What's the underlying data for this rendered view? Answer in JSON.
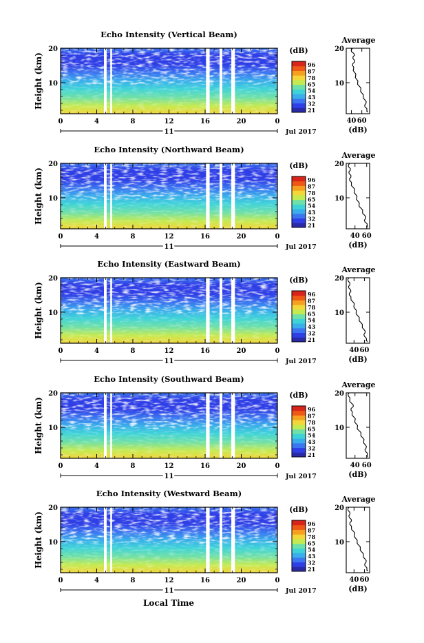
{
  "figure": {
    "xlabel": "Local Time",
    "date_label": "Jul 2017",
    "day_label": "11",
    "ylabel": "Height (km)",
    "cbar_label": "(dB)",
    "avg_title": "Average",
    "avg_xlabel": "(dB)"
  },
  "colormap": [
    "#2a2aa8",
    "#2f3fe6",
    "#3b76f0",
    "#39aeea",
    "#3fd3d8",
    "#6fe0a8",
    "#c4ea52",
    "#f2d63a",
    "#f5a020",
    "#ee5a16",
    "#d8241a"
  ],
  "colorbar_ticks": [
    "96",
    "87",
    "78",
    "65",
    "54",
    "43",
    "32",
    "21"
  ],
  "chart_data": [
    {
      "type": "heatmap",
      "title": "Echo Intensity (Vertical Beam)",
      "x_ticks": [
        "0",
        "4",
        "8",
        "12",
        "16",
        "20",
        "0"
      ],
      "y_ticks": [
        "20",
        "10"
      ],
      "xlim": [
        0,
        24
      ],
      "ylim": [
        1,
        20
      ],
      "gaps_hours": [
        [
          4.8,
          5.1
        ],
        [
          5.5,
          5.7
        ],
        [
          16.1,
          16.5
        ],
        [
          17.6,
          17.9
        ],
        [
          18.9,
          19.3
        ]
      ],
      "average_profile": {
        "xlim": [
          30,
          75
        ],
        "x_ticks": [
          "40",
          "60"
        ],
        "y_ticks": [
          "20",
          "10"
        ],
        "height_km": [
          20,
          19,
          18,
          17,
          16,
          15,
          14,
          13,
          12,
          11,
          10,
          9,
          8,
          7,
          6,
          5,
          4,
          3,
          2,
          1.5
        ],
        "db": [
          42,
          40,
          46,
          43,
          46,
          42,
          44,
          46,
          48,
          50,
          52,
          55,
          58,
          60,
          63,
          66,
          68,
          66,
          70,
          72
        ]
      }
    },
    {
      "type": "heatmap",
      "title": "Echo Intensity (Northward Beam)",
      "x_ticks": [
        "0",
        "4",
        "8",
        "12",
        "16",
        "20",
        "0"
      ],
      "y_ticks": [
        "20",
        "10"
      ],
      "xlim": [
        0,
        24
      ],
      "ylim": [
        1,
        20
      ],
      "gaps_hours": [
        [
          4.8,
          5.1
        ],
        [
          5.5,
          5.7
        ],
        [
          16.1,
          16.5
        ],
        [
          17.6,
          17.9
        ],
        [
          18.9,
          19.3
        ]
      ],
      "average_profile": {
        "xlim": [
          25,
          65
        ],
        "x_ticks": [
          "40",
          "60"
        ],
        "y_ticks": [
          "20",
          "10"
        ],
        "height_km": [
          20,
          19,
          18,
          17,
          16,
          15,
          14,
          13,
          12,
          11,
          10,
          9,
          8,
          7,
          6,
          5,
          4,
          3,
          2,
          1.5
        ],
        "db": [
          31,
          29,
          32,
          30,
          33,
          31,
          34,
          37,
          39,
          41,
          43,
          45,
          47,
          50,
          53,
          56,
          58,
          57,
          61,
          62
        ]
      }
    },
    {
      "type": "heatmap",
      "title": "Echo Intensity (Eastward Beam)",
      "x_ticks": [
        "0",
        "4",
        "8",
        "12",
        "16",
        "20",
        "0"
      ],
      "y_ticks": [
        "20",
        "10"
      ],
      "xlim": [
        0,
        24
      ],
      "ylim": [
        1,
        20
      ],
      "gaps_hours": [
        [
          4.8,
          5.1
        ],
        [
          5.5,
          5.7
        ],
        [
          16.1,
          16.5
        ],
        [
          17.6,
          17.9
        ],
        [
          18.9,
          19.3
        ]
      ],
      "average_profile": {
        "xlim": [
          25,
          70
        ],
        "x_ticks": [
          "40",
          "60"
        ],
        "y_ticks": [
          "20",
          "10"
        ],
        "height_km": [
          20,
          19,
          18,
          17,
          16,
          15,
          14,
          13,
          12,
          11,
          10,
          9,
          8,
          7,
          6,
          5,
          4,
          3,
          2,
          1.5
        ],
        "db": [
          30,
          29,
          32,
          30,
          34,
          31,
          34,
          38,
          40,
          42,
          44,
          47,
          50,
          53,
          56,
          59,
          61,
          60,
          64,
          66
        ]
      }
    },
    {
      "type": "heatmap",
      "title": "Echo Intensity (Southward Beam)",
      "x_ticks": [
        "0",
        "4",
        "8",
        "12",
        "16",
        "20",
        "0"
      ],
      "y_ticks": [
        "20",
        "10"
      ],
      "xlim": [
        0,
        24
      ],
      "ylim": [
        1,
        20
      ],
      "gaps_hours": [
        [
          4.8,
          5.1
        ],
        [
          5.5,
          5.7
        ],
        [
          16.1,
          16.5
        ],
        [
          17.6,
          17.9
        ],
        [
          18.9,
          19.3
        ]
      ],
      "average_profile": {
        "xlim": [
          25,
          65
        ],
        "x_ticks": [
          "40",
          "60"
        ],
        "y_ticks": [
          "20",
          "10"
        ],
        "height_km": [
          20,
          19,
          18,
          17,
          16,
          15,
          14,
          13,
          12,
          11,
          10,
          9,
          8,
          7,
          6,
          5,
          4,
          3,
          2,
          1.5
        ],
        "db": [
          30,
          29,
          31,
          34,
          37,
          33,
          35,
          38,
          40,
          42,
          44,
          47,
          50,
          53,
          55,
          57,
          59,
          58,
          61,
          62
        ]
      }
    },
    {
      "type": "heatmap",
      "title": "Echo Intensity (Westward Beam)",
      "x_ticks": [
        "0",
        "4",
        "8",
        "12",
        "16",
        "20",
        "0"
      ],
      "y_ticks": [
        "20",
        "10"
      ],
      "xlim": [
        0,
        24
      ],
      "ylim": [
        1,
        20
      ],
      "gaps_hours": [
        [
          4.8,
          5.1
        ],
        [
          5.5,
          5.7
        ],
        [
          16.1,
          16.5
        ],
        [
          17.6,
          17.9
        ],
        [
          18.9,
          19.3
        ]
      ],
      "average_profile": {
        "xlim": [
          25,
          70
        ],
        "x_ticks": [
          "40",
          "60"
        ],
        "y_ticks": [
          "20",
          "10"
        ],
        "height_km": [
          20,
          19,
          18,
          17,
          16,
          15,
          14,
          13,
          12,
          11,
          10,
          9,
          8,
          7,
          6,
          5,
          4,
          3,
          2,
          1.5
        ],
        "db": [
          30,
          29,
          32,
          31,
          35,
          32,
          35,
          39,
          41,
          43,
          46,
          49,
          52,
          55,
          58,
          61,
          63,
          61,
          65,
          67
        ]
      }
    }
  ]
}
